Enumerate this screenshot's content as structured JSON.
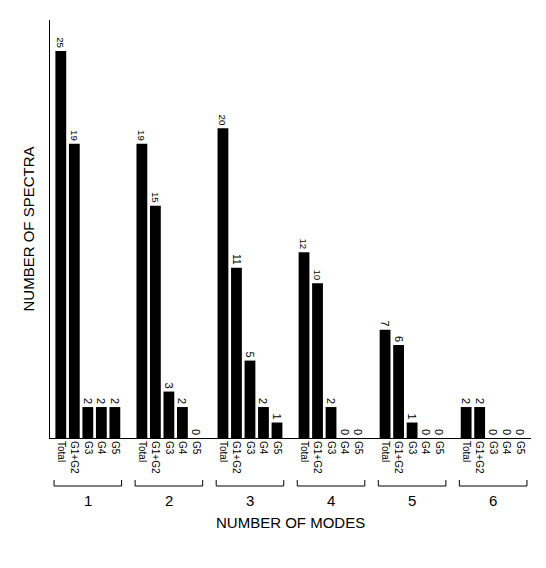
{
  "chart_data": {
    "type": "bar",
    "x_label": "NUMBER OF MODES",
    "y_label": "NUMBER OF SPECTRA",
    "categories": [
      "1",
      "2",
      "3",
      "4",
      "5",
      "6"
    ],
    "series": [
      {
        "name": "Total",
        "values": [
          25,
          19,
          20,
          12,
          7,
          2
        ]
      },
      {
        "name": "G1+G2",
        "values": [
          19,
          15,
          11,
          10,
          6,
          2
        ]
      },
      {
        "name": "G3",
        "values": [
          2,
          3,
          5,
          2,
          1,
          0
        ]
      },
      {
        "name": "G4",
        "values": [
          2,
          2,
          2,
          0,
          0,
          0
        ]
      },
      {
        "name": "G5",
        "values": [
          2,
          0,
          1,
          0,
          0,
          0
        ]
      }
    ],
    "color": "#000000",
    "ylim": [
      0,
      27
    ],
    "data_labels": true,
    "tick_labels": "x",
    "grid": false
  }
}
